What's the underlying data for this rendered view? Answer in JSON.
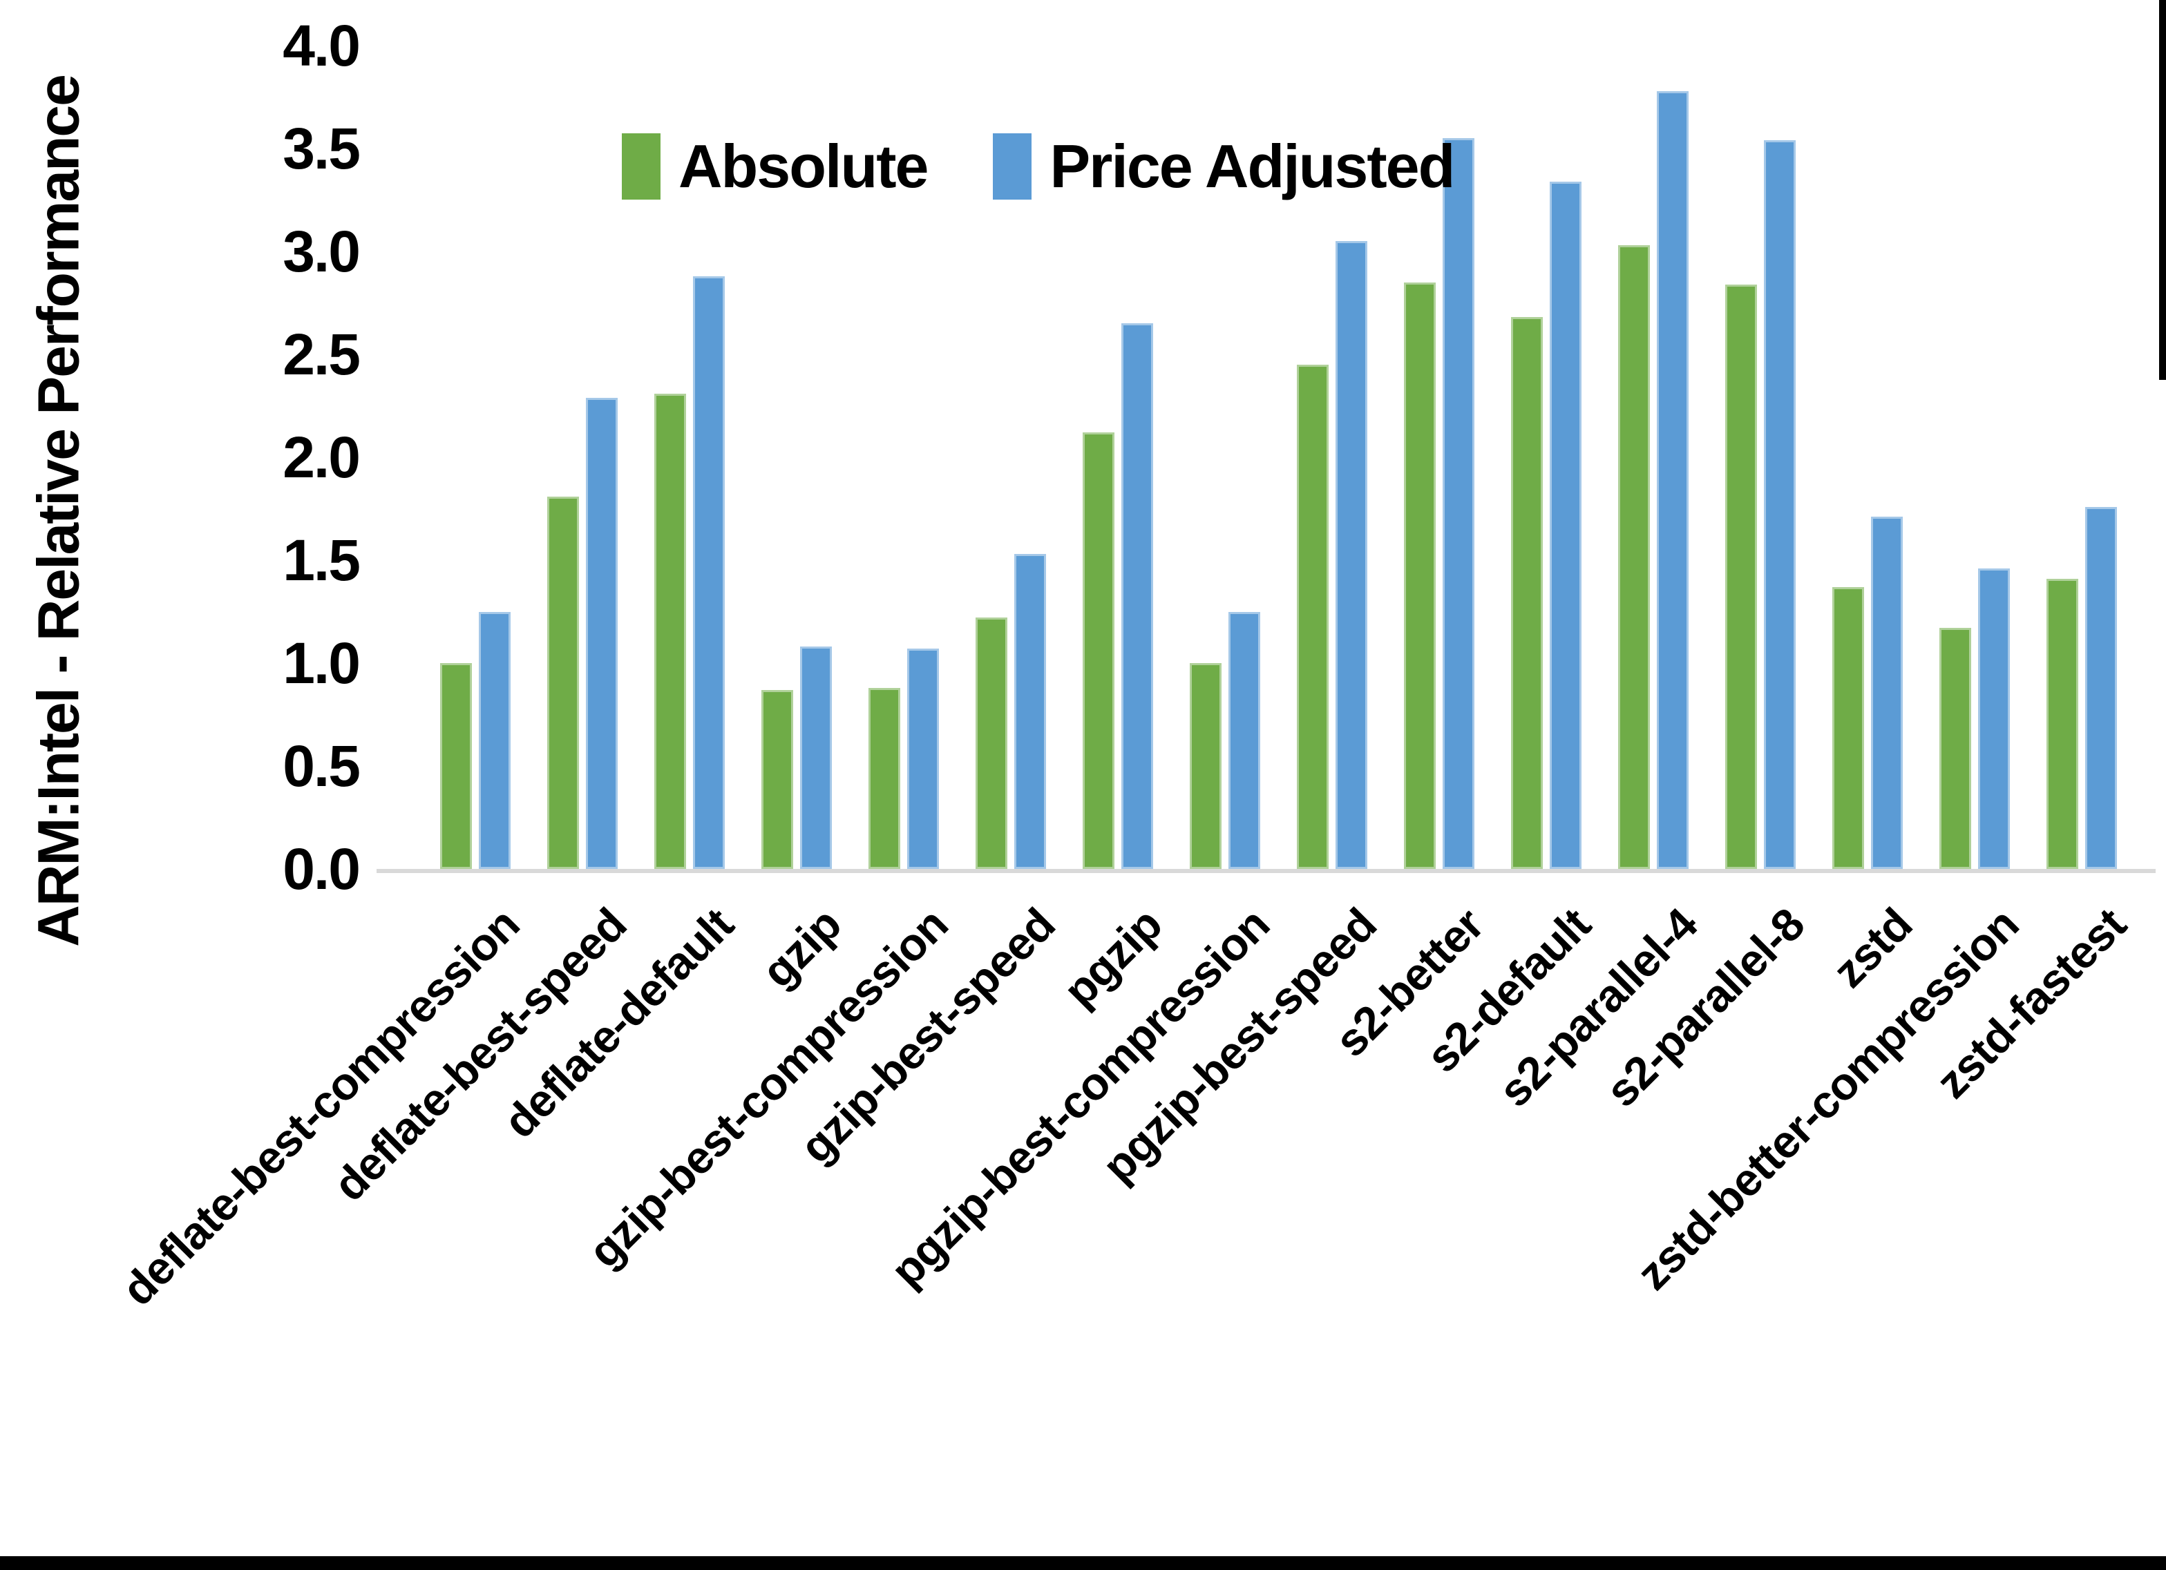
{
  "chart_data": {
    "type": "bar",
    "title": "",
    "xlabel": "",
    "ylabel": "ARM:Intel - Relative Performance",
    "ylim": [
      0.0,
      4.0
    ],
    "ytick_step": 0.5,
    "ytick_labels": [
      "0.0",
      "0.5",
      "1.0",
      "1.5",
      "2.0",
      "2.5",
      "3.0",
      "3.5",
      "4.0"
    ],
    "grid": false,
    "legend_position": "top-center",
    "categories": [
      "deflate-best-compression",
      "deflate-best-speed",
      "deflate-default",
      "gzip",
      "gzip-best-compression",
      "gzip-best-speed",
      "pgzip",
      "pgzip-best-compression",
      "pgzip-best-speed",
      "s2-better",
      "s2-default",
      "s2-parallel-4",
      "s2-parallel-8",
      "zstd",
      "zstd-better-compression",
      "zstd-fastest"
    ],
    "series": [
      {
        "name": "Absolute",
        "color": "#6FAC47",
        "values": [
          1.0,
          1.81,
          2.31,
          0.87,
          0.88,
          1.22,
          2.12,
          1.0,
          2.45,
          2.85,
          2.68,
          3.03,
          2.84,
          1.37,
          1.17,
          1.41
        ]
      },
      {
        "name": "Price Adjusted",
        "color": "#5B9BD5",
        "values": [
          1.25,
          2.29,
          2.88,
          1.08,
          1.07,
          1.53,
          2.65,
          1.25,
          3.05,
          3.55,
          3.34,
          3.78,
          3.54,
          1.71,
          1.46,
          1.76
        ]
      }
    ]
  },
  "colors": {
    "axis_line": "#D9D9D9",
    "text": "#000000",
    "screenshot_border": "#000000"
  }
}
